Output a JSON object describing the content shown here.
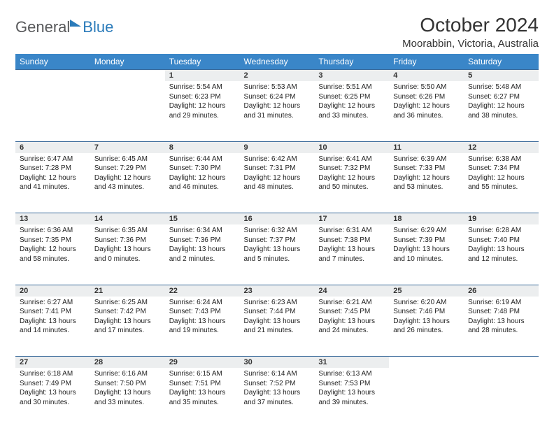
{
  "logo": {
    "part1": "General",
    "part2": "Blue"
  },
  "title": "October 2024",
  "location": "Moorabbin, Victoria, Australia",
  "colors": {
    "header_bg": "#3a86c8",
    "header_text": "#ffffff",
    "daynum_bg": "#eceeef",
    "row_border": "#3a6a9a",
    "logo_gray": "#58595b",
    "logo_blue": "#2b7bba",
    "page_bg": "#ffffff"
  },
  "typography": {
    "title_fontsize": 28,
    "location_fontsize": 15,
    "weekday_fontsize": 12,
    "daynum_fontsize": 11,
    "detail_fontsize": 10
  },
  "weekdays": [
    "Sunday",
    "Monday",
    "Tuesday",
    "Wednesday",
    "Thursday",
    "Friday",
    "Saturday"
  ],
  "weeks": [
    [
      null,
      null,
      {
        "num": "1",
        "sunrise": "Sunrise: 5:54 AM",
        "sunset": "Sunset: 6:23 PM",
        "daylight": "Daylight: 12 hours and 29 minutes."
      },
      {
        "num": "2",
        "sunrise": "Sunrise: 5:53 AM",
        "sunset": "Sunset: 6:24 PM",
        "daylight": "Daylight: 12 hours and 31 minutes."
      },
      {
        "num": "3",
        "sunrise": "Sunrise: 5:51 AM",
        "sunset": "Sunset: 6:25 PM",
        "daylight": "Daylight: 12 hours and 33 minutes."
      },
      {
        "num": "4",
        "sunrise": "Sunrise: 5:50 AM",
        "sunset": "Sunset: 6:26 PM",
        "daylight": "Daylight: 12 hours and 36 minutes."
      },
      {
        "num": "5",
        "sunrise": "Sunrise: 5:48 AM",
        "sunset": "Sunset: 6:27 PM",
        "daylight": "Daylight: 12 hours and 38 minutes."
      }
    ],
    [
      {
        "num": "6",
        "sunrise": "Sunrise: 6:47 AM",
        "sunset": "Sunset: 7:28 PM",
        "daylight": "Daylight: 12 hours and 41 minutes."
      },
      {
        "num": "7",
        "sunrise": "Sunrise: 6:45 AM",
        "sunset": "Sunset: 7:29 PM",
        "daylight": "Daylight: 12 hours and 43 minutes."
      },
      {
        "num": "8",
        "sunrise": "Sunrise: 6:44 AM",
        "sunset": "Sunset: 7:30 PM",
        "daylight": "Daylight: 12 hours and 46 minutes."
      },
      {
        "num": "9",
        "sunrise": "Sunrise: 6:42 AM",
        "sunset": "Sunset: 7:31 PM",
        "daylight": "Daylight: 12 hours and 48 minutes."
      },
      {
        "num": "10",
        "sunrise": "Sunrise: 6:41 AM",
        "sunset": "Sunset: 7:32 PM",
        "daylight": "Daylight: 12 hours and 50 minutes."
      },
      {
        "num": "11",
        "sunrise": "Sunrise: 6:39 AM",
        "sunset": "Sunset: 7:33 PM",
        "daylight": "Daylight: 12 hours and 53 minutes."
      },
      {
        "num": "12",
        "sunrise": "Sunrise: 6:38 AM",
        "sunset": "Sunset: 7:34 PM",
        "daylight": "Daylight: 12 hours and 55 minutes."
      }
    ],
    [
      {
        "num": "13",
        "sunrise": "Sunrise: 6:36 AM",
        "sunset": "Sunset: 7:35 PM",
        "daylight": "Daylight: 12 hours and 58 minutes."
      },
      {
        "num": "14",
        "sunrise": "Sunrise: 6:35 AM",
        "sunset": "Sunset: 7:36 PM",
        "daylight": "Daylight: 13 hours and 0 minutes."
      },
      {
        "num": "15",
        "sunrise": "Sunrise: 6:34 AM",
        "sunset": "Sunset: 7:36 PM",
        "daylight": "Daylight: 13 hours and 2 minutes."
      },
      {
        "num": "16",
        "sunrise": "Sunrise: 6:32 AM",
        "sunset": "Sunset: 7:37 PM",
        "daylight": "Daylight: 13 hours and 5 minutes."
      },
      {
        "num": "17",
        "sunrise": "Sunrise: 6:31 AM",
        "sunset": "Sunset: 7:38 PM",
        "daylight": "Daylight: 13 hours and 7 minutes."
      },
      {
        "num": "18",
        "sunrise": "Sunrise: 6:29 AM",
        "sunset": "Sunset: 7:39 PM",
        "daylight": "Daylight: 13 hours and 10 minutes."
      },
      {
        "num": "19",
        "sunrise": "Sunrise: 6:28 AM",
        "sunset": "Sunset: 7:40 PM",
        "daylight": "Daylight: 13 hours and 12 minutes."
      }
    ],
    [
      {
        "num": "20",
        "sunrise": "Sunrise: 6:27 AM",
        "sunset": "Sunset: 7:41 PM",
        "daylight": "Daylight: 13 hours and 14 minutes."
      },
      {
        "num": "21",
        "sunrise": "Sunrise: 6:25 AM",
        "sunset": "Sunset: 7:42 PM",
        "daylight": "Daylight: 13 hours and 17 minutes."
      },
      {
        "num": "22",
        "sunrise": "Sunrise: 6:24 AM",
        "sunset": "Sunset: 7:43 PM",
        "daylight": "Daylight: 13 hours and 19 minutes."
      },
      {
        "num": "23",
        "sunrise": "Sunrise: 6:23 AM",
        "sunset": "Sunset: 7:44 PM",
        "daylight": "Daylight: 13 hours and 21 minutes."
      },
      {
        "num": "24",
        "sunrise": "Sunrise: 6:21 AM",
        "sunset": "Sunset: 7:45 PM",
        "daylight": "Daylight: 13 hours and 24 minutes."
      },
      {
        "num": "25",
        "sunrise": "Sunrise: 6:20 AM",
        "sunset": "Sunset: 7:46 PM",
        "daylight": "Daylight: 13 hours and 26 minutes."
      },
      {
        "num": "26",
        "sunrise": "Sunrise: 6:19 AM",
        "sunset": "Sunset: 7:48 PM",
        "daylight": "Daylight: 13 hours and 28 minutes."
      }
    ],
    [
      {
        "num": "27",
        "sunrise": "Sunrise: 6:18 AM",
        "sunset": "Sunset: 7:49 PM",
        "daylight": "Daylight: 13 hours and 30 minutes."
      },
      {
        "num": "28",
        "sunrise": "Sunrise: 6:16 AM",
        "sunset": "Sunset: 7:50 PM",
        "daylight": "Daylight: 13 hours and 33 minutes."
      },
      {
        "num": "29",
        "sunrise": "Sunrise: 6:15 AM",
        "sunset": "Sunset: 7:51 PM",
        "daylight": "Daylight: 13 hours and 35 minutes."
      },
      {
        "num": "30",
        "sunrise": "Sunrise: 6:14 AM",
        "sunset": "Sunset: 7:52 PM",
        "daylight": "Daylight: 13 hours and 37 minutes."
      },
      {
        "num": "31",
        "sunrise": "Sunrise: 6:13 AM",
        "sunset": "Sunset: 7:53 PM",
        "daylight": "Daylight: 13 hours and 39 minutes."
      },
      null,
      null
    ]
  ]
}
